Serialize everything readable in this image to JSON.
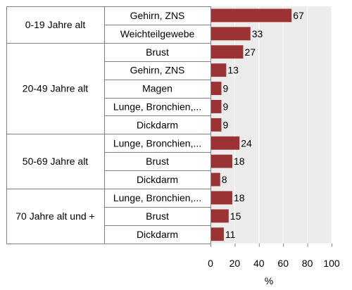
{
  "chart_data": {
    "type": "bar",
    "orientation": "horizontal",
    "xlabel": "%",
    "xlim": [
      0,
      100
    ],
    "xticks": [
      "0",
      "20",
      "40",
      "60",
      "80",
      "100"
    ],
    "colors": {
      "bar": "#9b3335",
      "plot_bg": "#ececec",
      "grid": "#ffffff",
      "border": "#808080"
    },
    "groups": [
      {
        "label": "0-19 Jahre alt",
        "rows": [
          {
            "label": "Gehirn, ZNS",
            "value": 67
          },
          {
            "label": "Weichteilgewebe",
            "value": 33
          }
        ]
      },
      {
        "label": "20-49 Jahre alt",
        "rows": [
          {
            "label": "Brust",
            "value": 27
          },
          {
            "label": "Gehirn, ZNS",
            "value": 13
          },
          {
            "label": "Magen",
            "value": 9
          },
          {
            "label": "Lunge, Bronchien,...",
            "value": 9
          },
          {
            "label": "Dickdarm",
            "value": 9
          }
        ]
      },
      {
        "label": "50-69 Jahre alt",
        "rows": [
          {
            "label": "Lunge, Bronchien,...",
            "value": 24
          },
          {
            "label": "Brust",
            "value": 18
          },
          {
            "label": "Dickdarm",
            "value": 8
          }
        ]
      },
      {
        "label": "70 Jahre alt und +",
        "rows": [
          {
            "label": "Lunge, Bronchien,...",
            "value": 18
          },
          {
            "label": "Brust",
            "value": 15
          },
          {
            "label": "Dickdarm",
            "value": 11
          }
        ]
      }
    ]
  }
}
